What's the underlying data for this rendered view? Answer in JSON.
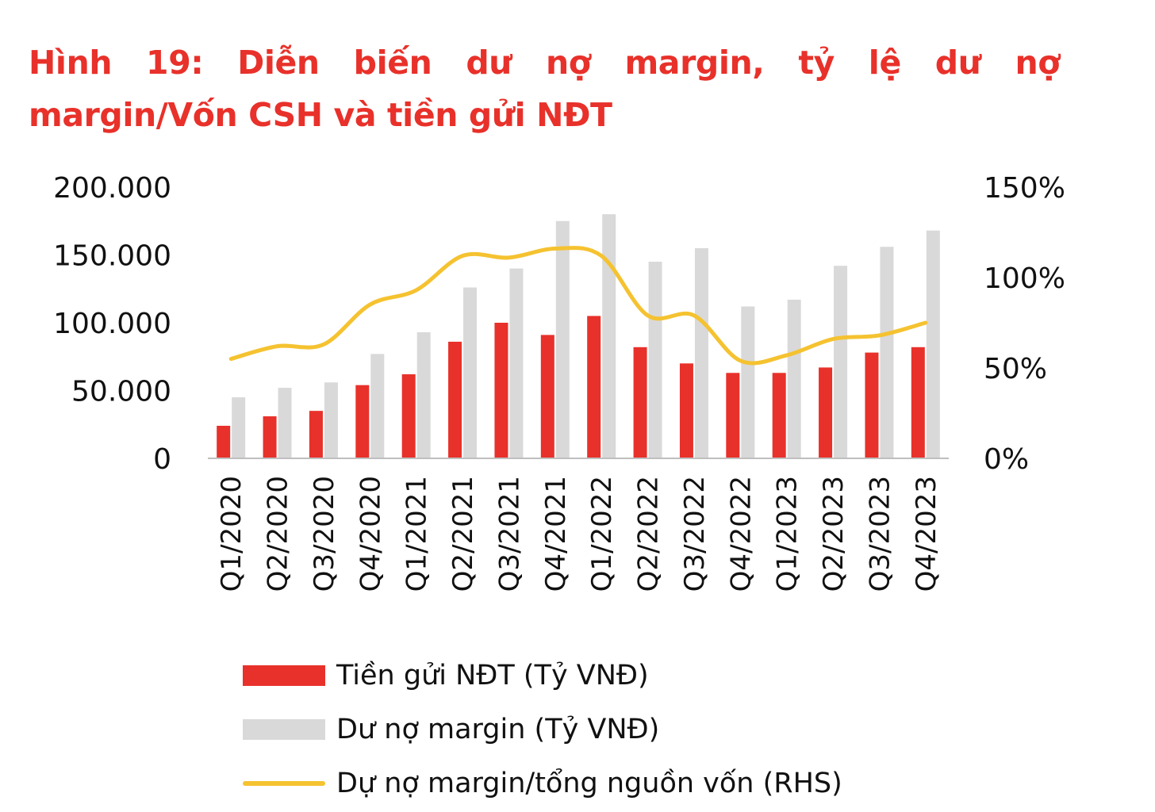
{
  "title_line1": "Hình 19: Diễn biến dư nợ margin, tỷ lệ dư nợ",
  "title_line2": "margin/Vốn CSH và tiền gửi NĐT",
  "colors": {
    "title": "#e8312a",
    "deposit": "#e8312a",
    "margin": "#d9d9d9",
    "ratio": "#f5c230",
    "axis": "#bfbfbf",
    "text": "#111111"
  },
  "chart_data": {
    "type": "bar",
    "categories": [
      "Q1/2020",
      "Q2/2020",
      "Q3/2020",
      "Q4/2020",
      "Q1/2021",
      "Q2/2021",
      "Q3/2021",
      "Q4/2021",
      "Q1/2022",
      "Q2/2022",
      "Q3/2022",
      "Q4/2022",
      "Q1/2023",
      "Q2/2023",
      "Q3/2023",
      "Q4/2023"
    ],
    "series": [
      {
        "name": "Tiền gửi NĐT (Tỷ VNĐ)",
        "type": "bar",
        "axis": "left",
        "values": [
          24000,
          31000,
          35000,
          54000,
          62000,
          86000,
          100000,
          91000,
          105000,
          82000,
          70000,
          63000,
          63000,
          67000,
          78000,
          82000
        ]
      },
      {
        "name": "Dư nợ margin (Tỷ VNĐ)",
        "type": "bar",
        "axis": "left",
        "values": [
          45000,
          52000,
          56000,
          77000,
          93000,
          126000,
          140000,
          175000,
          180000,
          145000,
          155000,
          112000,
          117000,
          142000,
          156000,
          168000
        ]
      },
      {
        "name": "Dự nợ margin/tổng nguồn vốn (RHS)",
        "type": "line",
        "axis": "right",
        "values": [
          0.55,
          0.62,
          0.63,
          0.85,
          0.93,
          1.12,
          1.11,
          1.16,
          1.12,
          0.79,
          0.79,
          0.54,
          0.57,
          0.66,
          0.68,
          0.75
        ]
      }
    ],
    "y_left": {
      "ylim": [
        0,
        200000
      ],
      "ticks": [
        "200.000",
        "150.000",
        "100.000",
        "50.000",
        "0"
      ],
      "tick_values": [
        200000,
        150000,
        100000,
        50000,
        0
      ]
    },
    "y_right": {
      "ylim": [
        0,
        1.5
      ],
      "ticks": [
        "150%",
        "100%",
        "50%",
        "0%"
      ],
      "tick_values": [
        1.5,
        1.0,
        0.5,
        0
      ]
    },
    "grid": false,
    "legend_position": "bottom"
  }
}
